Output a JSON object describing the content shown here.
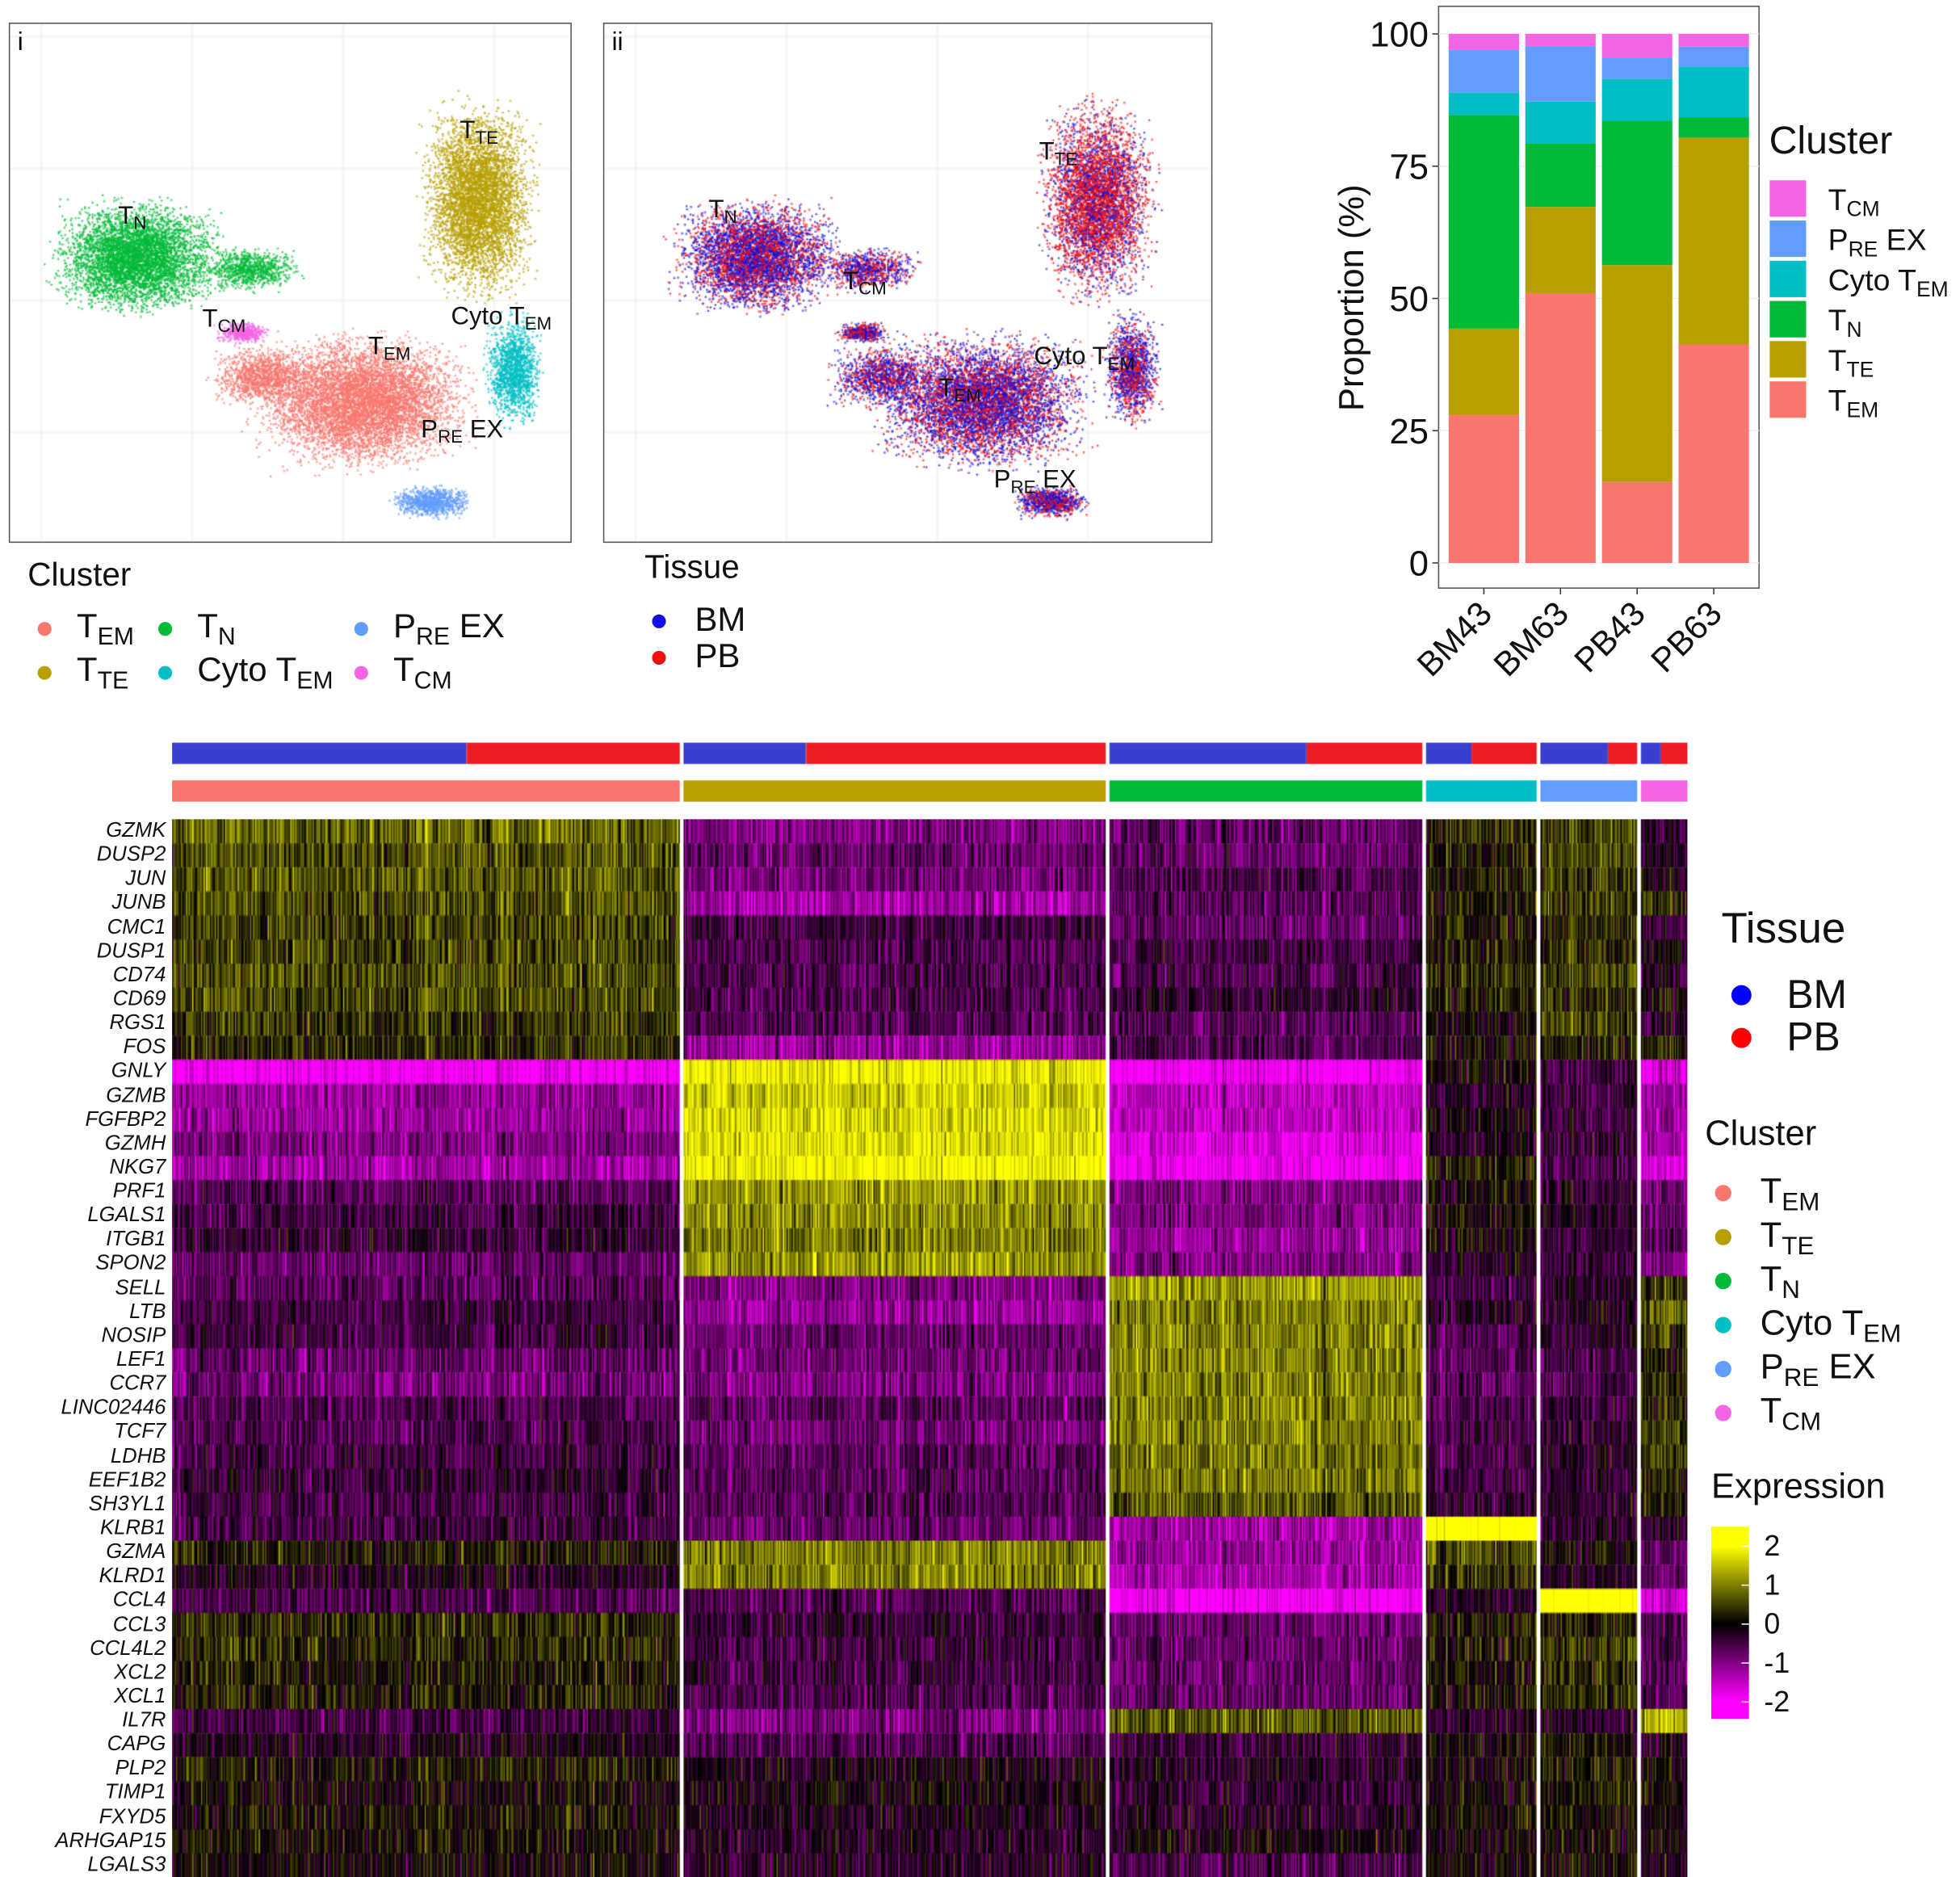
{
  "umap_panels": [
    {
      "tag": "i",
      "color_by": "cluster",
      "labels": [
        {
          "main": "T",
          "sub": "TE",
          "suffix": ""
        },
        {
          "main": "T",
          "sub": "N",
          "suffix": ""
        },
        {
          "main": "T",
          "sub": "CM",
          "suffix": ""
        },
        {
          "main": "T",
          "sub": "EM",
          "suffix": ""
        },
        {
          "main": "Cyto T",
          "sub": "EM",
          "suffix": ""
        },
        {
          "main": "P",
          "sub": "RE",
          "suffix": " EX"
        }
      ]
    },
    {
      "tag": "ii",
      "color_by": "tissue",
      "labels": [
        {
          "main": "T",
          "sub": "N",
          "suffix": ""
        },
        {
          "main": "T",
          "sub": "TE",
          "suffix": ""
        },
        {
          "main": "T",
          "sub": "CM",
          "suffix": ""
        },
        {
          "main": "Cyto T",
          "sub": "EM",
          "suffix": ""
        },
        {
          "main": "T",
          "sub": "EM",
          "suffix": ""
        },
        {
          "main": "P",
          "sub": "RE",
          "suffix": " EX"
        }
      ]
    }
  ],
  "clusters": [
    {
      "key": "TEM",
      "main": "T",
      "sub": "EM",
      "suffix": "",
      "color": "#F8766D"
    },
    {
      "key": "TTE",
      "main": "T",
      "sub": "TE",
      "suffix": "",
      "color": "#B79F00"
    },
    {
      "key": "TN",
      "main": "T",
      "sub": "N",
      "suffix": "",
      "color": "#00BA38"
    },
    {
      "key": "CytoTEM",
      "main": "Cyto T",
      "sub": "EM",
      "suffix": "",
      "color": "#00BFC4"
    },
    {
      "key": "PREEX",
      "main": "P",
      "sub": "RE",
      "suffix": " EX",
      "color": "#619CFF"
    },
    {
      "key": "TCM",
      "main": "T",
      "sub": "CM",
      "suffix": "",
      "color": "#F564E3"
    }
  ],
  "tissues": [
    {
      "label": "BM",
      "color": "#1010E0"
    },
    {
      "label": "PB",
      "color": "#EE1111"
    }
  ],
  "legends": {
    "cluster_title": "Cluster",
    "tissue_title": "Tissue",
    "expression_title": "Expression",
    "expression_ticks": [
      "2",
      "1",
      "0",
      "-1",
      "-2"
    ]
  },
  "chart_data": [
    {
      "type": "bar",
      "stacked": true,
      "categories": [
        "BM43",
        "BM63",
        "PB43",
        "PB63"
      ],
      "ylabel": "Proportion (%)",
      "ylim": [
        0,
        100
      ],
      "yticks": [
        "0",
        "25",
        "50",
        "75",
        "100"
      ],
      "legend_title": "Cluster",
      "legend_position": "right",
      "series": [
        {
          "name": "TEM",
          "values": [
            28,
            51,
            15.3,
            41.3
          ]
        },
        {
          "name": "TTE",
          "values": [
            16.3,
            16.3,
            41,
            39.1
          ]
        },
        {
          "name": "TN",
          "values": [
            40.4,
            12,
            27.3,
            3.8
          ]
        },
        {
          "name": "CytoTEM",
          "values": [
            4.2,
            7.9,
            7.9,
            9.6
          ]
        },
        {
          "name": "PREEX",
          "values": [
            8.1,
            10.5,
            4,
            3.8
          ]
        },
        {
          "name": "TCM",
          "values": [
            3,
            2.3,
            4.5,
            2.4
          ]
        }
      ]
    },
    {
      "type": "heatmap",
      "color_scale": {
        "min": -2,
        "mid": 0,
        "max": 2,
        "colors": [
          "#FF00FF",
          "#000000",
          "#FFFF00"
        ]
      },
      "column_groups": [
        "TEM",
        "TTE",
        "TN",
        "CytoTEM",
        "PREEX",
        "TCM"
      ],
      "tissue_fraction_BM": [
        0.58,
        0.29,
        0.63,
        0.41,
        0.7,
        0.43
      ],
      "genes": [
        "GZMK",
        "DUSP2",
        "JUN",
        "JUNB",
        "CMC1",
        "DUSP1",
        "CD74",
        "CD69",
        "RGS1",
        "FOS",
        "GNLY",
        "GZMB",
        "FGFBP2",
        "GZMH",
        "NKG7",
        "PRF1",
        "LGALS1",
        "ITGB1",
        "SPON2",
        "SELL",
        "LTB",
        "NOSIP",
        "LEF1",
        "CCR7",
        "LINC02446",
        "TCF7",
        "LDHB",
        "EEF1B2",
        "SH3YL1",
        "KLRB1",
        "GZMA",
        "KLRD1",
        "CCL4",
        "CCL3",
        "CCL4L2",
        "XCL2",
        "XCL1",
        "IL7R",
        "CAPG",
        "PLP2",
        "TIMP1",
        "FXYD5",
        "ARHGAP15",
        "LGALS3"
      ],
      "mean_expression": [
        [
          0.8,
          -1,
          -0.8,
          0.3,
          0.5,
          -0.3
        ],
        [
          0.6,
          -0.8,
          -0.8,
          0.2,
          0.5,
          -0.2
        ],
        [
          0.7,
          -0.9,
          -0.6,
          0.2,
          0.4,
          0
        ],
        [
          0.6,
          -1.3,
          -0.7,
          0.2,
          0.4,
          0.3
        ],
        [
          0.5,
          -0.5,
          -0.8,
          0.2,
          0.3,
          -0.5
        ],
        [
          0.5,
          -0.6,
          -0.5,
          0.2,
          0.3,
          0
        ],
        [
          0.6,
          -0.6,
          -0.6,
          0.3,
          0.5,
          -0.3
        ],
        [
          0.6,
          -0.6,
          -0.4,
          0.2,
          0.3,
          0
        ],
        [
          0.4,
          -0.7,
          -0.7,
          0,
          0.4,
          -0.3
        ],
        [
          0.3,
          -1.2,
          -0.6,
          0.1,
          0.2,
          0.3
        ],
        [
          -2,
          1.9,
          -2,
          0,
          -0.6,
          -1.6
        ],
        [
          -1.2,
          1.6,
          -1.5,
          -0.3,
          -0.5,
          -1.2
        ],
        [
          -1.2,
          1.7,
          -1.5,
          0,
          -0.5,
          -1.2
        ],
        [
          -1,
          1.8,
          -1.8,
          -0.2,
          -0.4,
          -1.3
        ],
        [
          -1.3,
          2,
          -2,
          0.2,
          -0.6,
          -1.6
        ],
        [
          -0.7,
          1.2,
          -1,
          0,
          -0.4,
          -0.9
        ],
        [
          -0.5,
          1.1,
          -1,
          0,
          -0.3,
          -0.7
        ],
        [
          -0.4,
          1,
          -1.2,
          0,
          -0.4,
          -0.6
        ],
        [
          -0.8,
          1.2,
          -1,
          -0.3,
          -0.5,
          -1
        ],
        [
          -0.7,
          -1,
          1.2,
          -0.5,
          -0.4,
          0.5
        ],
        [
          -0.5,
          -1.2,
          1,
          -0.3,
          -0.3,
          0.8
        ],
        [
          -0.5,
          -0.8,
          1,
          -0.6,
          -0.4,
          0.5
        ],
        [
          -0.8,
          -0.9,
          1,
          -0.7,
          -0.6,
          0.3
        ],
        [
          -0.9,
          -1,
          1,
          -0.8,
          -0.7,
          0.4
        ],
        [
          -0.6,
          -0.7,
          1,
          -0.6,
          -0.5,
          0.3
        ],
        [
          -0.6,
          -0.9,
          1,
          -0.5,
          -0.4,
          0.5
        ],
        [
          -0.5,
          -0.7,
          0.9,
          -0.5,
          -0.3,
          0.5
        ],
        [
          -0.4,
          -0.7,
          0.9,
          -0.5,
          -0.4,
          0.4
        ],
        [
          -0.5,
          -0.6,
          0.7,
          -0.4,
          -0.4,
          0.2
        ],
        [
          -0.5,
          -0.8,
          -1.3,
          2.5,
          -0.4,
          -0.3
        ],
        [
          0.2,
          1,
          -1.2,
          0.6,
          0,
          -0.8
        ],
        [
          -0.2,
          1,
          -1.3,
          0.4,
          -0.3,
          -0.8
        ],
        [
          -0.6,
          -0.6,
          -2,
          -0.3,
          2.5,
          -1.6
        ],
        [
          0.3,
          -0.4,
          -0.8,
          0.2,
          0.2,
          -0.6
        ],
        [
          0.3,
          -0.5,
          -0.8,
          0.2,
          0.4,
          -0.6
        ],
        [
          0.2,
          -0.5,
          -0.8,
          0.1,
          0.3,
          -0.6
        ],
        [
          0.2,
          -0.6,
          -0.8,
          0.1,
          0.3,
          -0.5
        ],
        [
          -0.5,
          -1,
          0.7,
          -0.3,
          -0.3,
          1.5
        ],
        [
          -0.2,
          -0.6,
          -0.4,
          0,
          0,
          -0.2
        ],
        [
          0.2,
          -0.2,
          -0.3,
          0.1,
          0.2,
          0
        ],
        [
          0,
          -0.1,
          -0.4,
          0.1,
          0.1,
          0
        ],
        [
          0.1,
          -0.2,
          -0.3,
          0.1,
          0.1,
          0
        ],
        [
          0.1,
          -0.3,
          -0.1,
          0,
          0,
          0
        ],
        [
          0,
          -0.3,
          -0.6,
          0,
          0,
          -0.2
        ]
      ]
    }
  ]
}
